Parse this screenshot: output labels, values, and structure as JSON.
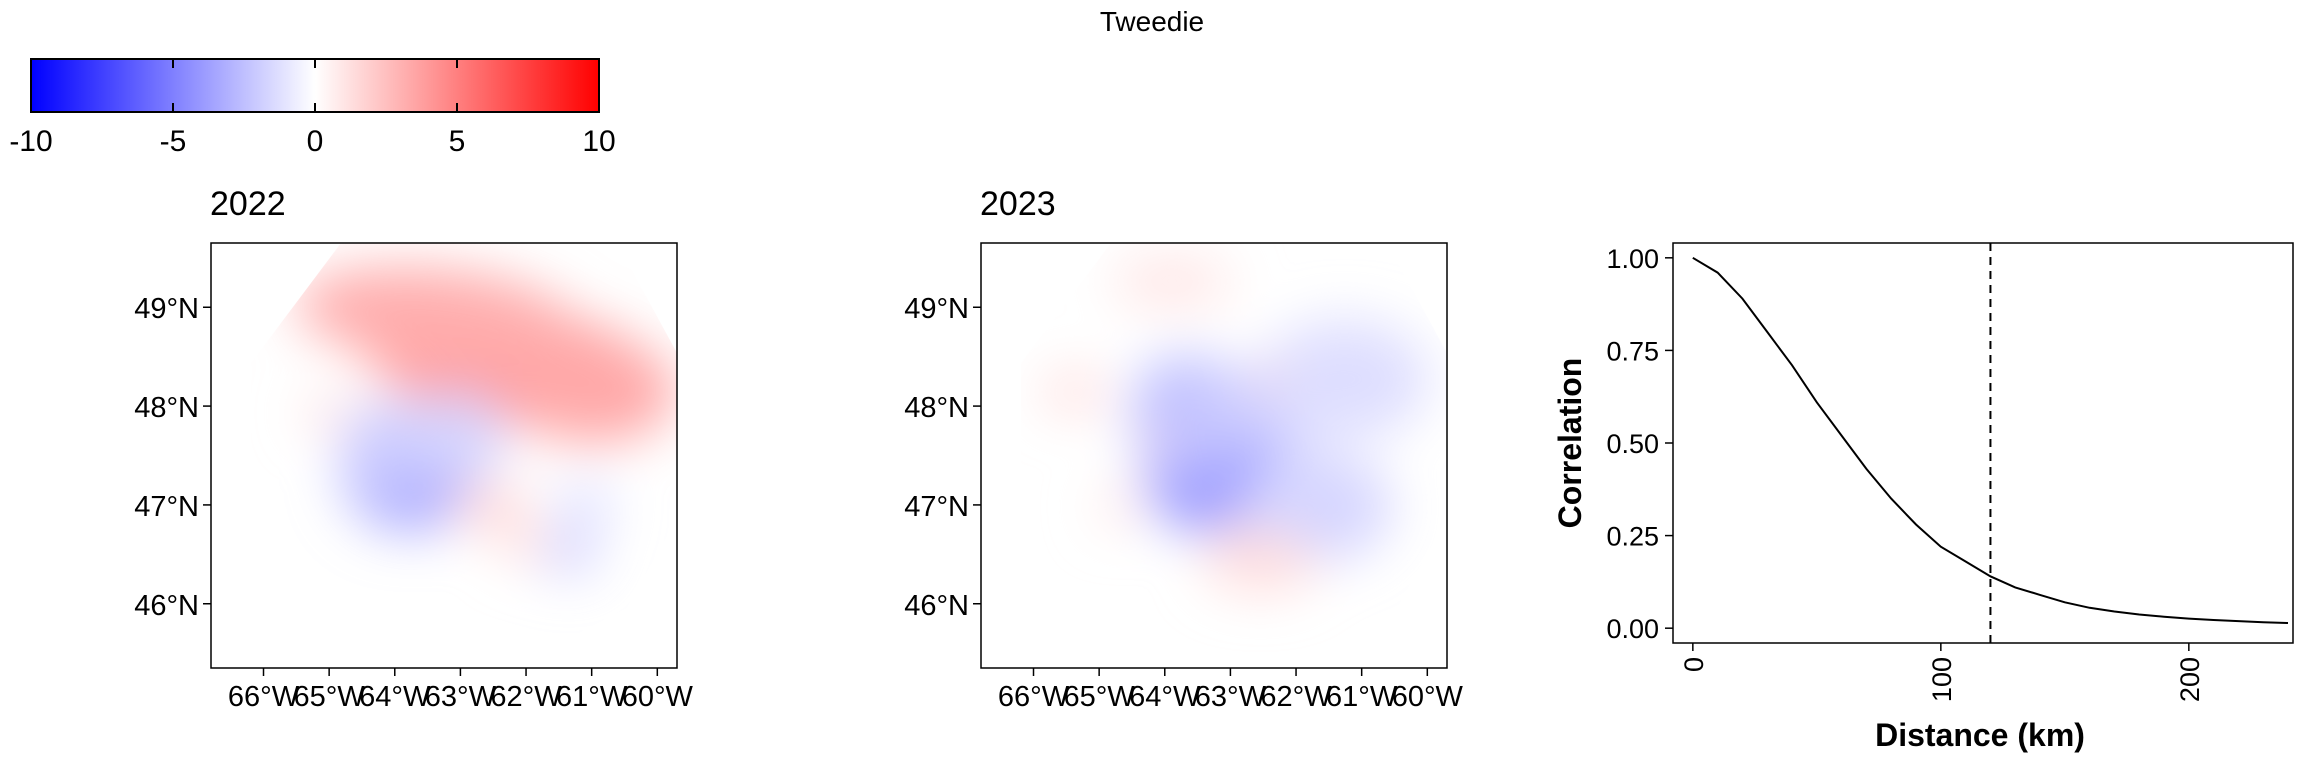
{
  "title": "Tweedie",
  "colors": {
    "low": "#0000ff",
    "mid": "#ffffff",
    "high": "#ff0000",
    "land": "#efd5b5",
    "land_stroke": "#333333"
  },
  "colorbar": {
    "min": -10,
    "max": 10,
    "tick_values": [
      -10,
      -5,
      0,
      5,
      10
    ],
    "tick_labels": [
      "-10",
      "-5",
      "0",
      "5",
      "10"
    ]
  },
  "maps": [
    {
      "title": "2022"
    },
    {
      "title": "2023"
    }
  ],
  "map_axes": {
    "lon_range": [
      -66.8,
      -59.7
    ],
    "lat_range": [
      45.35,
      49.65
    ],
    "lat_ticks": [
      49,
      48,
      47,
      46
    ],
    "lat_labels": [
      "49°N",
      "48°N",
      "47°N",
      "46°N"
    ],
    "lon_ticks": [
      -66,
      -65,
      -64,
      -63,
      -62,
      -61,
      -60
    ],
    "lon_labels": [
      "66°W",
      "65°W",
      "64°W",
      "63°W",
      "62°W",
      "61°W",
      "60°W"
    ]
  },
  "chart_data": {
    "type": "line",
    "title": "",
    "xlabel": "Distance (km)",
    "ylabel": "Correlation",
    "xlim": [
      -8,
      242
    ],
    "ylim": [
      -0.04,
      1.04
    ],
    "xticks": [
      0,
      100,
      200
    ],
    "xtick_labels": [
      "0",
      "100",
      "200"
    ],
    "yticks": [
      0.0,
      0.25,
      0.5,
      0.75,
      1.0
    ],
    "ytick_labels": [
      "0.00",
      "0.25",
      "0.50",
      "0.75",
      "1.00"
    ],
    "vline_x": 120,
    "grid": false,
    "x": [
      0,
      10,
      20,
      30,
      40,
      50,
      60,
      70,
      80,
      90,
      100,
      110,
      120,
      130,
      140,
      150,
      160,
      170,
      180,
      190,
      200,
      210,
      220,
      230,
      240
    ],
    "y": [
      1.0,
      0.96,
      0.89,
      0.8,
      0.71,
      0.61,
      0.52,
      0.43,
      0.35,
      0.28,
      0.22,
      0.18,
      0.14,
      0.11,
      0.09,
      0.07,
      0.055,
      0.045,
      0.037,
      0.031,
      0.026,
      0.022,
      0.019,
      0.016,
      0.014
    ]
  }
}
